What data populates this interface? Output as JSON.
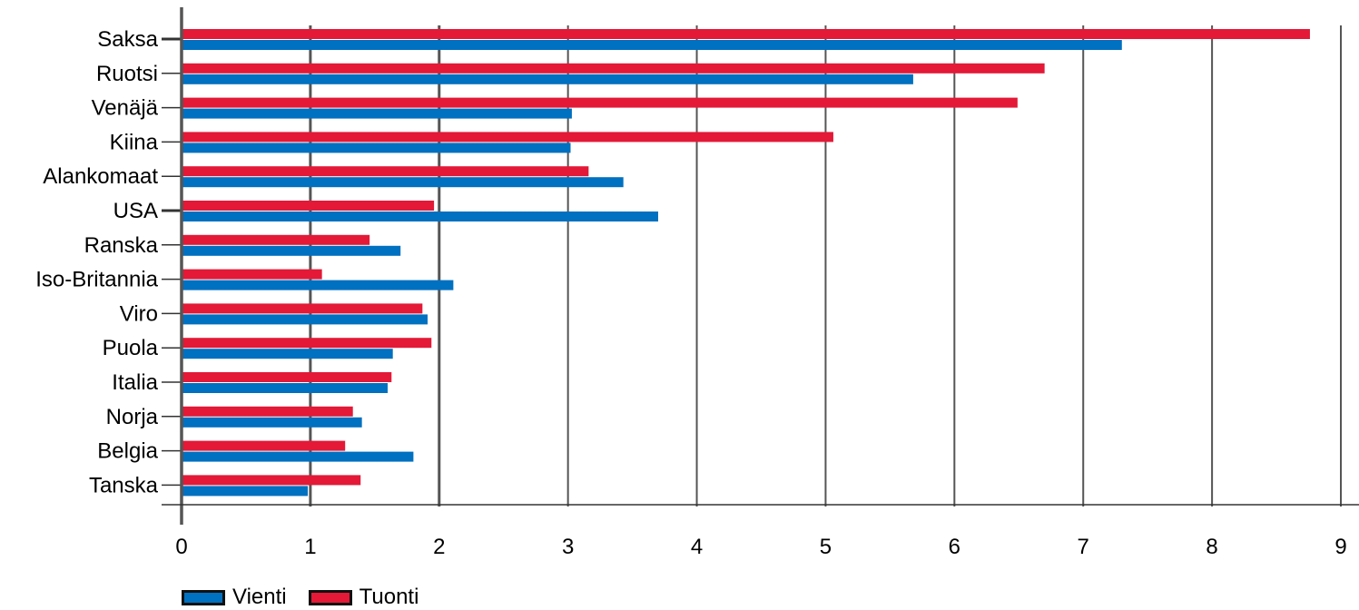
{
  "chart_data": {
    "type": "bar",
    "orientation": "horizontal",
    "title": "",
    "xlabel": "",
    "ylabel": "",
    "xlim": [
      0,
      9
    ],
    "xticks": [
      0,
      1,
      2,
      3,
      4,
      5,
      6,
      7,
      8,
      9
    ],
    "grid": true,
    "legend_position": "bottom-left",
    "categories": [
      "Saksa",
      "Ruotsi",
      "Venäjä",
      "Kiina",
      "Alankomaat",
      "USA",
      "Ranska",
      "Iso-Britannia",
      "Viro",
      "Puola",
      "Italia",
      "Norja",
      "Belgia",
      "Tanska"
    ],
    "series": [
      {
        "name": "Tuonti",
        "color": "#e31937",
        "values": [
          8.76,
          6.7,
          6.49,
          5.06,
          3.16,
          1.96,
          1.46,
          1.09,
          1.87,
          1.94,
          1.63,
          1.33,
          1.27,
          1.39
        ]
      },
      {
        "name": "Vienti",
        "color": "#0070c0",
        "values": [
          7.3,
          5.68,
          3.03,
          3.02,
          3.43,
          3.7,
          1.7,
          2.11,
          1.91,
          1.64,
          1.6,
          1.4,
          1.8,
          0.98
        ]
      }
    ]
  },
  "legend": {
    "vienti_label": "Vienti",
    "tuonti_label": "Tuonti"
  },
  "colors": {
    "vienti": "#0070c0",
    "tuonti": "#e31937",
    "grid": "#555555"
  }
}
